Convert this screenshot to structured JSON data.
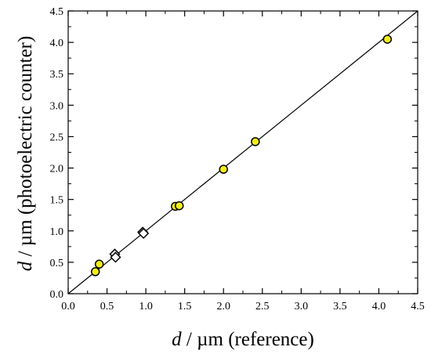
{
  "chart_data": {
    "type": "scatter",
    "title": "",
    "xlabel": {
      "symbol": "d",
      "rest": " / µm (reference)"
    },
    "ylabel": {
      "symbol": "d",
      "rest": " / µm (photoelectric counter)"
    },
    "xlim": [
      0.0,
      4.5
    ],
    "ylim": [
      0.0,
      4.5
    ],
    "xticks": [
      "0.0",
      "0.5",
      "1.0",
      "1.5",
      "2.0",
      "2.5",
      "3.0",
      "3.5",
      "4.0",
      "4.5"
    ],
    "yticks": [
      "0.0",
      "0.5",
      "1.0",
      "1.5",
      "2.0",
      "2.5",
      "3.0",
      "3.5",
      "4.0",
      "4.5"
    ],
    "grid": false,
    "reference_line": {
      "type": "identity",
      "from": [
        0.0,
        0.0
      ],
      "to": [
        4.5,
        4.5
      ]
    },
    "series": [
      {
        "marker": "circle",
        "fill": "#f2ee1a",
        "points": [
          {
            "x": 0.35,
            "y": 0.35
          },
          {
            "x": 0.4,
            "y": 0.47
          },
          {
            "x": 1.38,
            "y": 1.39
          },
          {
            "x": 1.43,
            "y": 1.4
          },
          {
            "x": 2.0,
            "y": 1.98
          },
          {
            "x": 2.41,
            "y": 2.42
          },
          {
            "x": 4.11,
            "y": 4.05
          }
        ]
      },
      {
        "marker": "diamond",
        "fill": "#ffffff",
        "points": [
          {
            "x": 0.6,
            "y": 0.63
          },
          {
            "x": 0.61,
            "y": 0.58
          },
          {
            "x": 0.96,
            "y": 0.98
          },
          {
            "x": 0.97,
            "y": 0.96
          }
        ]
      }
    ]
  }
}
